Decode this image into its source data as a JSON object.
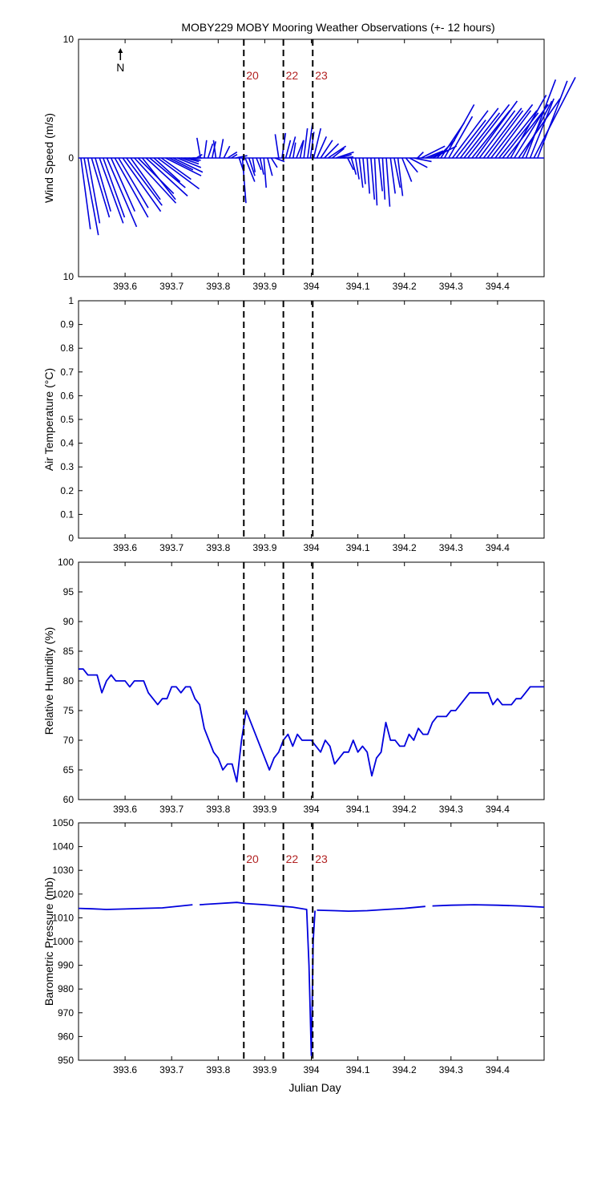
{
  "figure": {
    "title": "MOBY229 MOBY Mooring Weather Observations (+- 12 hours)",
    "xlabel": "Julian Day",
    "north_label": "N"
  },
  "chart_data": [
    {
      "type": "quiver",
      "ylabel": "Wind Speed (m/s)",
      "xlim": [
        393.5,
        394.5
      ],
      "ylim": [
        -10,
        10
      ],
      "yticks": [
        -10,
        0,
        10
      ],
      "ytick_labels": [
        "10",
        "0",
        "10"
      ],
      "xticks": [
        393.6,
        393.7,
        393.8,
        393.9,
        394,
        394.1,
        394.2,
        394.3,
        394.4
      ],
      "xtick_labels": [
        "393.6",
        "393.7",
        "393.8",
        "393.9",
        "394",
        "394.1",
        "394.2",
        "394.3",
        "394.4"
      ],
      "color": "#0000dd",
      "vectors": [
        [
          393.505,
          0.8,
          -6.0
        ],
        [
          393.512,
          1.2,
          -6.5
        ],
        [
          393.52,
          1.0,
          -5.5
        ],
        [
          393.528,
          1.5,
          -5.0
        ],
        [
          393.536,
          1.3,
          -4.5
        ],
        [
          393.545,
          2.0,
          -5.5
        ],
        [
          393.553,
          1.8,
          -5.0
        ],
        [
          393.561,
          2.5,
          -5.8
        ],
        [
          393.57,
          2.0,
          -4.5
        ],
        [
          393.578,
          2.8,
          -5.0
        ],
        [
          393.586,
          2.5,
          -4.2
        ],
        [
          393.595,
          3.2,
          -4.5
        ],
        [
          393.603,
          3.0,
          -4.0
        ],
        [
          393.612,
          2.5,
          -3.5
        ],
        [
          393.62,
          3.5,
          -3.8
        ],
        [
          393.628,
          3.0,
          -3.0
        ],
        [
          393.637,
          2.8,
          -3.5
        ],
        [
          393.645,
          3.5,
          -3.2
        ],
        [
          393.653,
          3.0,
          -2.5
        ],
        [
          393.662,
          2.2,
          -2.0
        ],
        [
          393.67,
          3.5,
          -2.6
        ],
        [
          393.678,
          2.5,
          -1.8
        ],
        [
          393.687,
          3.0,
          -1.5
        ],
        [
          393.695,
          2.0,
          -1.0
        ],
        [
          393.703,
          2.5,
          -1.2
        ],
        [
          393.712,
          2.0,
          -0.8
        ],
        [
          393.72,
          1.5,
          -0.5
        ],
        [
          393.728,
          1.2,
          -0.3
        ],
        [
          393.737,
          1.0,
          -0.2
        ],
        [
          393.745,
          0.8,
          0.0
        ],
        [
          393.753,
          0.5,
          0.3
        ],
        [
          393.762,
          -0.3,
          1.7
        ],
        [
          393.77,
          0.2,
          1.5
        ],
        [
          393.778,
          0.4,
          1.2
        ],
        [
          393.787,
          0.3,
          1.4
        ],
        [
          393.795,
          -0.2,
          1.5
        ],
        [
          393.803,
          0.3,
          1.6
        ],
        [
          393.812,
          0.5,
          1.0
        ],
        [
          393.82,
          0.8,
          0.5
        ],
        [
          393.828,
          0.5,
          0.3
        ],
        [
          393.837,
          1.0,
          0.2
        ],
        [
          393.845,
          0.4,
          -1.2
        ],
        [
          393.852,
          0.3,
          -3.8
        ],
        [
          393.858,
          0.8,
          -2.0
        ],
        [
          393.866,
          0.5,
          -1.5
        ],
        [
          393.874,
          0.2,
          -1.2
        ],
        [
          393.882,
          0.4,
          -1.0
        ],
        [
          393.89,
          0.3,
          -1.4
        ],
        [
          393.898,
          0.2,
          -2.5
        ],
        [
          393.906,
          0.4,
          -1.5
        ],
        [
          393.914,
          0.5,
          -0.8
        ],
        [
          393.922,
          0.8,
          -0.3
        ],
        [
          393.93,
          -0.3,
          2.0
        ],
        [
          393.937,
          0.3,
          2.1
        ],
        [
          393.945,
          0.4,
          1.5
        ],
        [
          393.953,
          0.5,
          1.8
        ],
        [
          393.961,
          0.2,
          1.3
        ],
        [
          393.968,
          0.6,
          1.5
        ],
        [
          393.976,
          0.3,
          1.5
        ],
        [
          393.984,
          0.3,
          2.5
        ],
        [
          393.992,
          0.4,
          2.8
        ],
        [
          393.998,
          0.3,
          2.2
        ],
        [
          394.005,
          0.6,
          2.5
        ],
        [
          394.012,
          0.8,
          1.8
        ],
        [
          394.02,
          1.0,
          1.5
        ],
        [
          394.028,
          1.2,
          1.2
        ],
        [
          394.036,
          1.5,
          1.0
        ],
        [
          394.045,
          1.0,
          0.8
        ],
        [
          394.053,
          1.5,
          0.5
        ],
        [
          394.061,
          1.0,
          0.3
        ],
        [
          394.07,
          0.8,
          0.1
        ],
        [
          394.078,
          0.5,
          -1.0
        ],
        [
          394.086,
          0.4,
          -1.4
        ],
        [
          394.095,
          0.3,
          -1.8
        ],
        [
          394.103,
          0.3,
          -2.5
        ],
        [
          394.111,
          0.2,
          -2.2
        ],
        [
          394.12,
          0.2,
          -3.0
        ],
        [
          394.128,
          0.3,
          -3.5
        ],
        [
          394.136,
          0.2,
          -4.0
        ],
        [
          394.145,
          0.3,
          -2.8
        ],
        [
          394.153,
          0.2,
          -3.5
        ],
        [
          394.161,
          0.3,
          -4.1
        ],
        [
          394.17,
          0.4,
          -3.0
        ],
        [
          394.178,
          0.5,
          -2.5
        ],
        [
          394.186,
          0.4,
          -3.2
        ],
        [
          394.195,
          0.8,
          -2.0
        ],
        [
          394.203,
          1.0,
          -1.2
        ],
        [
          394.211,
          1.5,
          -0.8
        ],
        [
          394.22,
          1.5,
          -0.3
        ],
        [
          394.228,
          0.5,
          0.5
        ],
        [
          394.236,
          2.0,
          1.0
        ],
        [
          394.245,
          1.5,
          0.6
        ],
        [
          394.253,
          1.2,
          0.5
        ],
        [
          394.261,
          2.0,
          1.0
        ],
        [
          394.27,
          1.5,
          1.5
        ],
        [
          394.278,
          2.0,
          3.0
        ],
        [
          394.286,
          2.5,
          4.5
        ],
        [
          394.295,
          2.0,
          3.5
        ],
        [
          394.303,
          3.0,
          4.0
        ],
        [
          394.311,
          2.5,
          3.2
        ],
        [
          394.32,
          3.2,
          4.2
        ],
        [
          394.328,
          3.0,
          3.8
        ],
        [
          394.336,
          3.5,
          4.5
        ],
        [
          394.345,
          3.2,
          4.0
        ],
        [
          394.353,
          3.5,
          4.8
        ],
        [
          394.361,
          3.0,
          4.0
        ],
        [
          394.37,
          3.2,
          4.2
        ],
        [
          394.378,
          3.0,
          4.0
        ],
        [
          394.386,
          3.5,
          4.5
        ],
        [
          394.395,
          3.0,
          4.0
        ],
        [
          394.403,
          3.2,
          4.0
        ],
        [
          394.411,
          3.0,
          3.8
        ],
        [
          394.42,
          3.5,
          4.5
        ],
        [
          394.428,
          3.0,
          5.3
        ],
        [
          394.436,
          2.8,
          4.5
        ],
        [
          394.445,
          3.5,
          5.0
        ],
        [
          394.453,
          2.5,
          4.8
        ],
        [
          394.461,
          2.5,
          6.6
        ],
        [
          394.47,
          2.0,
          5.0
        ],
        [
          394.478,
          3.5,
          6.8
        ],
        [
          394.486,
          2.5,
          6.5
        ]
      ]
    },
    {
      "type": "line",
      "ylabel": "Air Temperature (°C)",
      "xlim": [
        393.5,
        394.5
      ],
      "ylim": [
        0,
        1
      ],
      "yticks": [
        0,
        0.1,
        0.2,
        0.3,
        0.4,
        0.5,
        0.6,
        0.7,
        0.8,
        0.9,
        1
      ],
      "ytick_labels": [
        "0",
        "0.1",
        "0.2",
        "0.3",
        "0.4",
        "0.5",
        "0.6",
        "0.7",
        "0.8",
        "0.9",
        "1"
      ],
      "xticks": [
        393.6,
        393.7,
        393.8,
        393.9,
        394,
        394.1,
        394.2,
        394.3,
        394.4
      ],
      "xtick_labels": [
        "393.6",
        "393.7",
        "393.8",
        "393.9",
        "394",
        "394.1",
        "394.2",
        "394.3",
        "394.4"
      ],
      "series": [
        {
          "color": "#0000dd",
          "x": [],
          "y": []
        }
      ]
    },
    {
      "type": "line",
      "ylabel": "Relative Humidity (%)",
      "xlim": [
        393.5,
        394.5
      ],
      "ylim": [
        60,
        100
      ],
      "yticks": [
        60,
        65,
        70,
        75,
        80,
        85,
        90,
        95,
        100
      ],
      "ytick_labels": [
        "60",
        "65",
        "70",
        "75",
        "80",
        "85",
        "90",
        "95",
        "100"
      ],
      "xticks": [
        393.6,
        393.7,
        393.8,
        393.9,
        394,
        394.1,
        394.2,
        394.3,
        394.4
      ],
      "xtick_labels": [
        "393.6",
        "393.7",
        "393.8",
        "393.9",
        "394",
        "394.1",
        "394.2",
        "394.3",
        "394.4"
      ],
      "series": [
        {
          "color": "#0000dd",
          "x": [
            393.5,
            393.51,
            393.52,
            393.53,
            393.54,
            393.55,
            393.56,
            393.57,
            393.58,
            393.6,
            393.61,
            393.62,
            393.63,
            393.64,
            393.65,
            393.67,
            393.68,
            393.69,
            393.7,
            393.71,
            393.72,
            393.73,
            393.74,
            393.75,
            393.76,
            393.77,
            393.78,
            393.79,
            393.8,
            393.81,
            393.82,
            393.83,
            393.84,
            393.85,
            393.86,
            393.87,
            393.88,
            393.9,
            393.91,
            393.92,
            393.93,
            393.94,
            393.95,
            393.96,
            393.97,
            393.98,
            393.99,
            394.0,
            394.01,
            394.02,
            394.03,
            394.04,
            394.05,
            394.06,
            394.07,
            394.08,
            394.09,
            394.1,
            394.11,
            394.12,
            394.13,
            394.14,
            394.15,
            394.16,
            394.17,
            394.18,
            394.19,
            394.2,
            394.21,
            394.22,
            394.23,
            394.24,
            394.25,
            394.26,
            394.27,
            394.28,
            394.29,
            394.3,
            394.31,
            394.32,
            394.33,
            394.34,
            394.35,
            394.36,
            394.37,
            394.38,
            394.39,
            394.4,
            394.41,
            394.42,
            394.43,
            394.44,
            394.45,
            394.46,
            394.47,
            394.48,
            394.49,
            394.5
          ],
          "y": [
            82,
            82,
            81,
            81,
            81,
            78,
            80,
            81,
            80,
            80,
            79,
            80,
            80,
            80,
            78,
            76,
            77,
            77,
            79,
            79,
            78,
            79,
            79,
            77,
            76,
            72,
            70,
            68,
            67,
            65,
            66,
            66,
            63,
            70,
            75,
            73,
            71,
            67,
            65,
            67,
            68,
            70,
            71,
            69,
            71,
            70,
            70,
            70,
            69,
            68,
            70,
            69,
            66,
            67,
            68,
            68,
            70,
            68,
            69,
            68,
            64,
            67,
            68,
            73,
            70,
            70,
            69,
            69,
            71,
            70,
            72,
            71,
            71,
            73,
            74,
            74,
            74,
            75,
            75,
            76,
            77,
            78,
            78,
            78,
            78,
            78,
            76,
            77,
            76,
            76,
            76,
            77,
            77,
            78,
            79,
            79,
            79,
            79
          ]
        }
      ]
    },
    {
      "type": "line",
      "ylabel": "Barometric Pressure (mb)",
      "xlim": [
        393.5,
        394.5
      ],
      "ylim": [
        950,
        1050
      ],
      "yticks": [
        950,
        960,
        970,
        980,
        990,
        1000,
        1010,
        1020,
        1030,
        1040,
        1050
      ],
      "ytick_labels": [
        "950",
        "960",
        "970",
        "980",
        "990",
        "1000",
        "1010",
        "1020",
        "1030",
        "1040",
        "1050"
      ],
      "xticks": [
        393.6,
        393.7,
        393.8,
        393.9,
        394,
        394.1,
        394.2,
        394.3,
        394.4
      ],
      "xtick_labels": [
        "393.6",
        "393.7",
        "393.8",
        "393.9",
        "394",
        "394.1",
        "394.2",
        "394.3",
        "394.4"
      ],
      "series": [
        {
          "color": "#0000dd",
          "segments": [
            {
              "x": [
                393.5,
                393.53,
                393.56,
                393.6,
                393.64,
                393.68,
                393.72,
                393.745
              ],
              "y": [
                1014,
                1013.8,
                1013.5,
                1013.7,
                1014,
                1014.2,
                1015,
                1015.5
              ]
            },
            {
              "x": [
                393.76,
                393.8,
                393.84,
                393.86,
                393.9,
                393.93,
                393.96,
                393.99,
                393.995,
                394.0,
                394.004,
                394.008
              ],
              "y": [
                1015.5,
                1016,
                1016.5,
                1016,
                1015.5,
                1015,
                1014.5,
                1013.5,
                990,
                952,
                1000,
                1013
              ]
            },
            {
              "x": [
                394.012,
                394.05,
                394.08,
                394.12,
                394.16,
                394.2,
                394.245
              ],
              "y": [
                1013.2,
                1013,
                1012.8,
                1013,
                1013.5,
                1014,
                1014.8
              ]
            },
            {
              "x": [
                394.26,
                394.3,
                394.35,
                394.4,
                394.45,
                394.5
              ],
              "y": [
                1015,
                1015.3,
                1015.5,
                1015.3,
                1015,
                1014.5
              ]
            }
          ]
        }
      ]
    }
  ],
  "events": [
    {
      "label": "20",
      "x": 393.855
    },
    {
      "label": "22",
      "x": 393.94
    },
    {
      "label": "23",
      "x": 394.003
    }
  ],
  "event_label_panels": [
    0,
    3
  ]
}
